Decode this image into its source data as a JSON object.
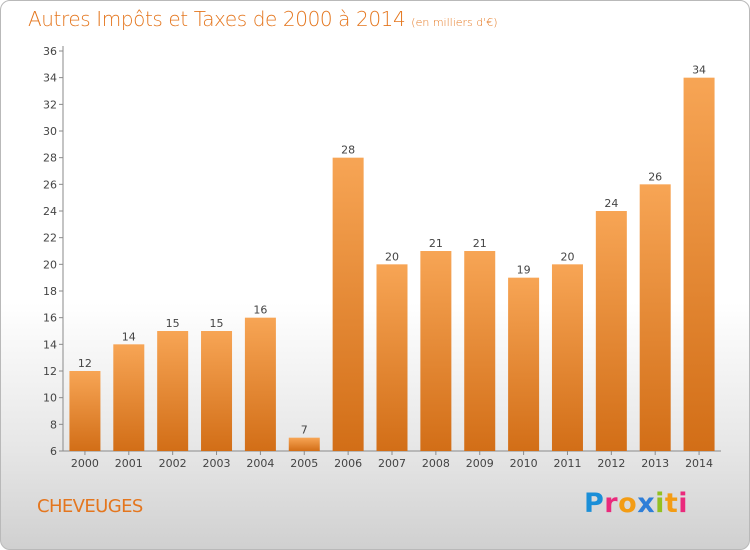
{
  "header": {
    "title": "Autres Impôts et Taxes de 2000 à 2014",
    "subtitle": "(en milliers d'€)"
  },
  "footer": {
    "commune": "CHEVEUGES",
    "logo_letters": [
      {
        "char": "P",
        "color": "#1b8fd8"
      },
      {
        "char": "r",
        "color": "#ea2a7c"
      },
      {
        "char": "o",
        "color": "#f39c14"
      },
      {
        "char": "x",
        "color": "#2e7ed8"
      },
      {
        "char": "i",
        "color": "#93c020"
      },
      {
        "char": "t",
        "color": "#f39c14"
      },
      {
        "char": "i",
        "color": "#ea2a7c"
      }
    ]
  },
  "colors": {
    "accent": "#e4761e",
    "bar_light": "#f7a555",
    "bar_dark": "#d26e17"
  },
  "chart_data": {
    "type": "bar",
    "title": "Autres Impôts et Taxes de 2000 à 2014",
    "subtitle": "(en milliers d'€)",
    "categories": [
      "2000",
      "2001",
      "2002",
      "2003",
      "2004",
      "2005",
      "2006",
      "2007",
      "2008",
      "2009",
      "2010",
      "2011",
      "2012",
      "2013",
      "2014"
    ],
    "values": [
      12,
      14,
      15,
      15,
      16,
      7,
      28,
      20,
      21,
      21,
      19,
      20,
      24,
      26,
      34
    ],
    "ylim": [
      6,
      36
    ],
    "yticks": [
      6,
      8,
      10,
      12,
      14,
      16,
      18,
      20,
      22,
      24,
      26,
      28,
      30,
      32,
      34,
      36
    ],
    "grid": false,
    "legend": "none"
  }
}
